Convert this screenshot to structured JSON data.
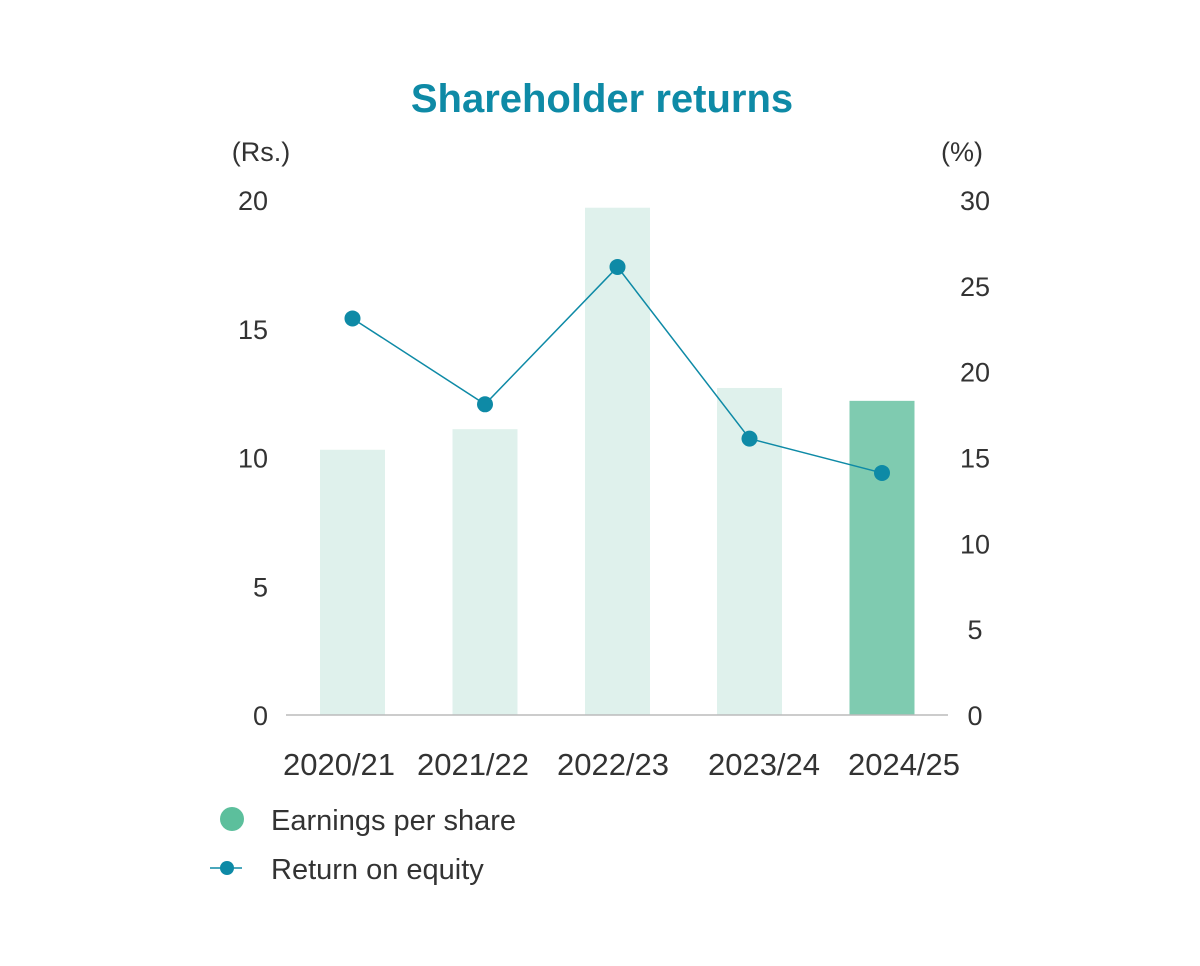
{
  "chart_data": {
    "type": "bar",
    "title": "Shareholder returns",
    "categories": [
      "2020/21",
      "2021/22",
      "2022/23",
      "2023/24",
      "2024/25"
    ],
    "series": [
      {
        "name": "Earnings per share",
        "type": "bar",
        "axis": "left",
        "values": [
          10.3,
          11.1,
          19.7,
          12.7,
          12.2
        ]
      },
      {
        "name": "Return on equity",
        "type": "line",
        "axis": "right",
        "values": [
          23.1,
          18.1,
          26.1,
          16.1,
          14.1
        ]
      }
    ],
    "left_axis": {
      "unit": "(Rs.)",
      "ylim": [
        0,
        20
      ],
      "ticks": [
        "0",
        "5",
        "10",
        "15",
        "20"
      ]
    },
    "right_axis": {
      "unit": "(%)",
      "ylim": [
        0,
        30
      ],
      "ticks": [
        "0",
        "5",
        "10",
        "15",
        "20",
        "25",
        "30"
      ]
    },
    "grid": false,
    "legend_position": "bottom-left",
    "highlight_index": 4
  },
  "colors": {
    "title": "#0e8aa6",
    "bar": "#dff1ec",
    "bar_highlight": "#7fcbb0",
    "legend_bar": "#5cbf9c",
    "line": "#0e8aa6",
    "axis": "#bbbbbb"
  }
}
